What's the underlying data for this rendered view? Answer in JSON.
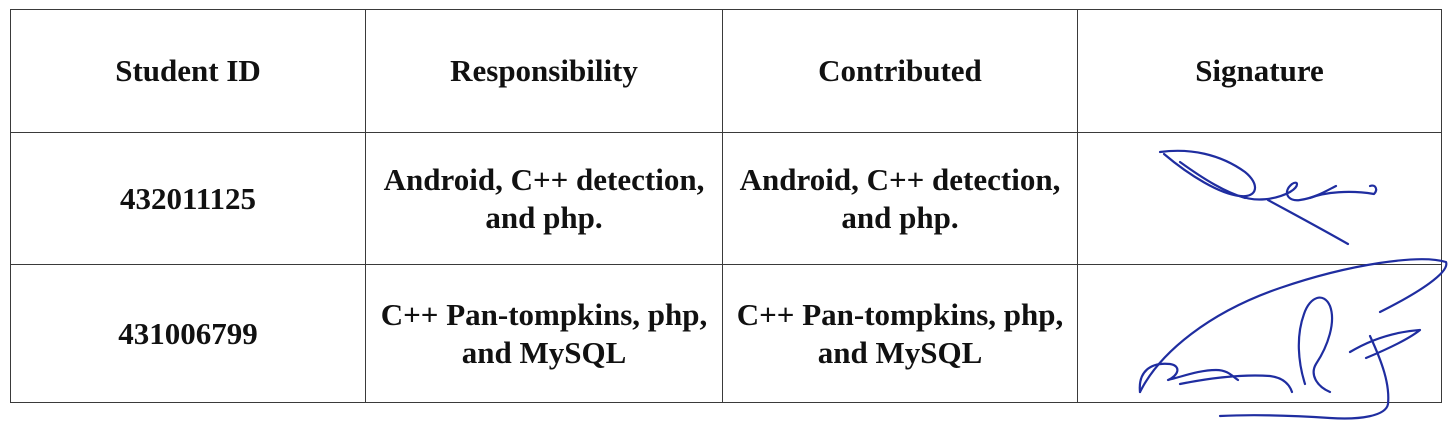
{
  "table": {
    "headers": [
      "Student ID",
      "Responsibility",
      "Contributed",
      "Signature"
    ],
    "rows": [
      {
        "student_id": "432011125",
        "responsibility": "Android, C++ detection, and php.",
        "contributed": "Android, C++ detection, and php.",
        "signature": "handwritten signature"
      },
      {
        "student_id": "431006799",
        "responsibility": "C++ Pan-tompkins, php, and MySQL",
        "contributed": "C++ Pan-tompkins, php, and MySQL",
        "signature": "handwritten signature"
      }
    ]
  },
  "colors": {
    "ink": "#111111",
    "grid": "#3a3a3a",
    "signature_ink": "#1f2da0"
  }
}
